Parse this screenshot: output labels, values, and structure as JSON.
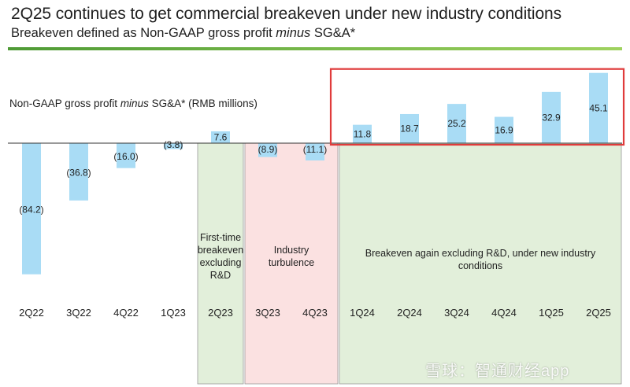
{
  "header": {
    "title": "2Q25 continues to get commercial breakeven under new industry conditions",
    "subtitle_prefix": "Breakeven defined as Non-GAAP gross profit ",
    "subtitle_emph": "minus",
    "subtitle_suffix": " SG&A*"
  },
  "chart_data": {
    "type": "bar",
    "measure_label_prefix": "Non-GAAP gross profit ",
    "measure_label_emph": "minus",
    "measure_label_suffix": " SG&A* (RMB millions)",
    "categories": [
      "2Q22",
      "3Q22",
      "4Q22",
      "1Q23",
      "2Q23",
      "3Q23",
      "4Q23",
      "1Q24",
      "2Q24",
      "3Q24",
      "4Q24",
      "1Q25",
      "2Q25"
    ],
    "values": [
      -84.2,
      -36.8,
      -16.0,
      -3.8,
      7.6,
      -8.9,
      -11.1,
      11.8,
      18.7,
      25.2,
      16.9,
      32.9,
      45.1
    ],
    "labels": [
      "(84.2)",
      "(36.8)",
      "(16.0)",
      "(3.8)",
      "7.6",
      "(8.9)",
      "(11.1)",
      "11.8",
      "18.7",
      "25.2",
      "16.9",
      "32.9",
      "45.1"
    ],
    "ylim": [
      -90,
      50
    ],
    "bar_color": "#a9dcf5",
    "annotations": [
      {
        "text": "First-time breakeven excluding R&D",
        "categories": [
          "2Q23"
        ],
        "color": "#e2efda"
      },
      {
        "text": "Industry turbulence",
        "categories": [
          "3Q23",
          "4Q23"
        ],
        "color": "#fbe1e1"
      },
      {
        "text": "Breakeven again excluding R&D, under new industry conditions",
        "categories": [
          "1Q24",
          "2Q24",
          "3Q24",
          "4Q24",
          "1Q25",
          "2Q25"
        ],
        "color": "#e2efda"
      }
    ],
    "highlight": {
      "categories": [
        "1Q24",
        "2Q24",
        "3Q24",
        "4Q24",
        "1Q25",
        "2Q25"
      ],
      "color": "#e03b3b"
    }
  },
  "watermark": "雪球：智通财经app"
}
